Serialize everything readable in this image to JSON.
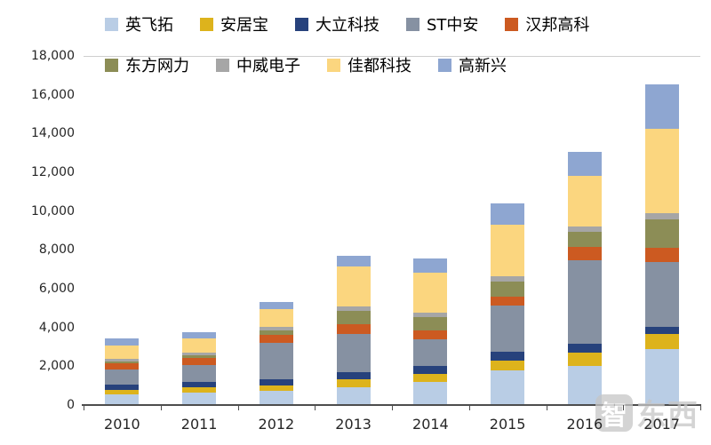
{
  "chart_data": {
    "type": "bar",
    "stacked": true,
    "title": "",
    "xlabel": "",
    "ylabel": "",
    "categories": [
      "2010",
      "2011",
      "2012",
      "2013",
      "2014",
      "2015",
      "2016",
      "2017"
    ],
    "series": [
      {
        "name": "英飞拓",
        "color": "#b9cde5",
        "values": [
          550,
          640,
          730,
          920,
          1190,
          1790,
          2000,
          2900
        ]
      },
      {
        "name": "安居宝",
        "color": "#ddb31c",
        "values": [
          230,
          275,
          275,
          410,
          410,
          500,
          690,
          750
        ]
      },
      {
        "name": "大立科技",
        "color": "#27427c",
        "values": [
          275,
          275,
          320,
          370,
          410,
          460,
          460,
          400
        ]
      },
      {
        "name": "ST中安",
        "color": "#8691a2",
        "values": [
          780,
          870,
          1880,
          1970,
          1370,
          2380,
          4300,
          3340
        ]
      },
      {
        "name": "汉邦高科",
        "color": "#cc5a21",
        "values": [
          320,
          370,
          410,
          500,
          460,
          460,
          690,
          700
        ]
      },
      {
        "name": "东方网力",
        "color": "#8c8d56",
        "values": [
          90,
          140,
          230,
          690,
          690,
          780,
          780,
          1500
        ]
      },
      {
        "name": "中威电子",
        "color": "#a6a6a6",
        "values": [
          140,
          140,
          180,
          230,
          230,
          270,
          270,
          300
        ]
      },
      {
        "name": "佳都科技",
        "color": "#fbd67f",
        "values": [
          690,
          730,
          920,
          2060,
          2060,
          2650,
          2650,
          4350
        ]
      },
      {
        "name": "高新兴",
        "color": "#8ea6d1",
        "values": [
          370,
          320,
          370,
          550,
          730,
          1100,
          1240,
          2300
        ]
      }
    ],
    "ylim": [
      0,
      18000
    ],
    "ytick_interval": 2000,
    "ytick_labels": [
      "0",
      "2,000",
      "4,000",
      "6,000",
      "8,000",
      "10,000",
      "12,000",
      "14,000",
      "16,000",
      "18,000"
    ],
    "legend_position": "top",
    "legend_rows": [
      5,
      4
    ],
    "grid": false
  },
  "watermark": {
    "icon_char": "智",
    "text": "东西"
  }
}
